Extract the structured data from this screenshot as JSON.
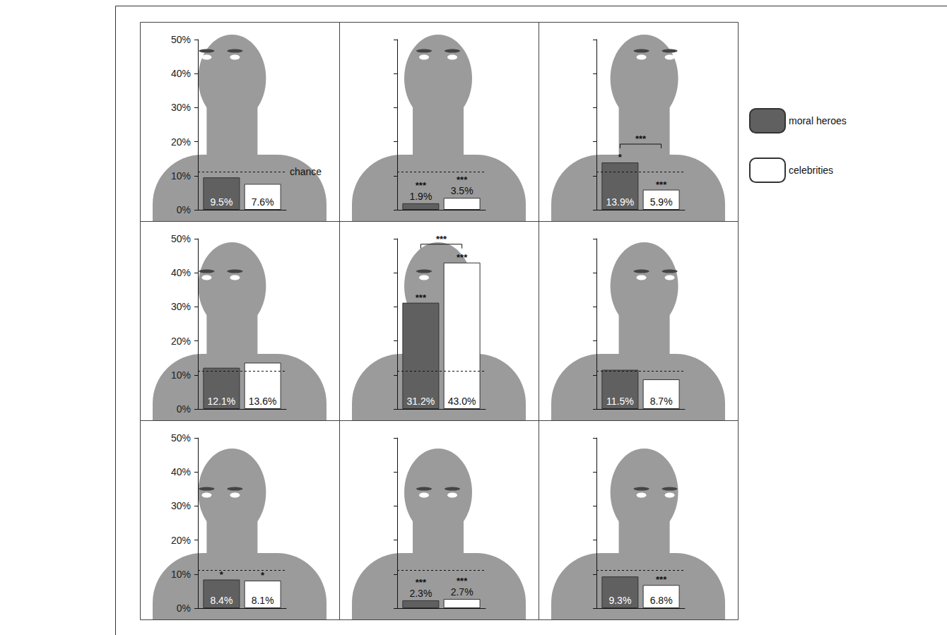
{
  "chart_data": [
    {
      "type": "bar",
      "categories": [
        null
      ],
      "series": [
        {
          "name": "moral heroes",
          "color": "#606060",
          "values": [
            9.5
          ],
          "value_labels": [
            "9.5%"
          ],
          "stars": [
            null
          ]
        },
        {
          "name": "celebrities",
          "color": "#ffffff",
          "values": [
            7.6
          ],
          "value_labels": [
            "7.6%"
          ],
          "stars": [
            null
          ]
        }
      ],
      "ylim": [
        0,
        50
      ],
      "yticks": [
        {
          "value": 0,
          "label": "0%"
        },
        {
          "value": 10,
          "label": "10%"
        },
        {
          "value": 20,
          "label": "20%"
        },
        {
          "value": 30,
          "label": "30%"
        },
        {
          "value": 40,
          "label": "40%"
        },
        {
          "value": 50,
          "label": "50%"
        }
      ],
      "tick_labels": "y",
      "data_labels": true,
      "chance": 11.1,
      "chance_label": "chance",
      "legend": "right"
    },
    {
      "type": "bar",
      "categories": [
        null
      ],
      "series": [
        {
          "name": "moral heroes",
          "color": "#606060",
          "values": [
            1.9
          ],
          "value_labels": [
            "1.9%"
          ],
          "stars": [
            "***"
          ]
        },
        {
          "name": "celebrities",
          "color": "#ffffff",
          "values": [
            3.5
          ],
          "value_labels": [
            "3.5%"
          ],
          "stars": [
            "***"
          ]
        }
      ],
      "ylim": [
        0,
        50
      ],
      "yticks": [
        0,
        10,
        20,
        30,
        40,
        50
      ],
      "tick_labels": false,
      "data_labels": true,
      "chance": 11.1
    },
    {
      "type": "bar",
      "categories": [
        null
      ],
      "series": [
        {
          "name": "moral heroes",
          "color": "#606060",
          "values": [
            13.9
          ],
          "value_labels": [
            "13.9%"
          ],
          "stars": [
            "*"
          ]
        },
        {
          "name": "celebrities",
          "color": "#ffffff",
          "values": [
            5.9
          ],
          "value_labels": [
            "5.9%"
          ],
          "stars": [
            "***"
          ]
        }
      ],
      "ylim": [
        0,
        50
      ],
      "yticks": [
        0,
        10,
        20,
        30,
        40,
        50
      ],
      "tick_labels": false,
      "data_labels": true,
      "chance": 11.1,
      "comparison": "***"
    },
    {
      "type": "bar",
      "categories": [
        null
      ],
      "series": [
        {
          "name": "moral heroes",
          "color": "#606060",
          "values": [
            12.1
          ],
          "value_labels": [
            "12.1%"
          ],
          "stars": [
            null
          ]
        },
        {
          "name": "celebrities",
          "color": "#ffffff",
          "values": [
            13.6
          ],
          "value_labels": [
            "13.6%"
          ],
          "stars": [
            null
          ]
        }
      ],
      "ylim": [
        0,
        50
      ],
      "yticks": [
        {
          "value": 0,
          "label": "0%"
        },
        {
          "value": 10,
          "label": "10%"
        },
        {
          "value": 20,
          "label": "20%"
        },
        {
          "value": 30,
          "label": "30%"
        },
        {
          "value": 40,
          "label": "40%"
        },
        {
          "value": 50,
          "label": "50%"
        }
      ],
      "tick_labels": "y",
      "data_labels": true,
      "chance": 11.1
    },
    {
      "type": "bar",
      "categories": [
        null
      ],
      "series": [
        {
          "name": "moral heroes",
          "color": "#606060",
          "values": [
            31.2
          ],
          "value_labels": [
            "31.2%"
          ],
          "stars": [
            "***"
          ]
        },
        {
          "name": "celebrities",
          "color": "#ffffff",
          "values": [
            43.0
          ],
          "value_labels": [
            "43.0%"
          ],
          "stars": [
            "***"
          ]
        }
      ],
      "ylim": [
        0,
        50
      ],
      "yticks": [
        0,
        10,
        20,
        30,
        40,
        50
      ],
      "tick_labels": false,
      "data_labels": true,
      "chance": 11.1,
      "comparison": "***"
    },
    {
      "type": "bar",
      "categories": [
        null
      ],
      "series": [
        {
          "name": "moral heroes",
          "color": "#606060",
          "values": [
            11.5
          ],
          "value_labels": [
            "11.5%"
          ],
          "stars": [
            null
          ]
        },
        {
          "name": "celebrities",
          "color": "#ffffff",
          "values": [
            8.7
          ],
          "value_labels": [
            "8.7%"
          ],
          "stars": [
            null
          ]
        }
      ],
      "ylim": [
        0,
        50
      ],
      "yticks": [
        0,
        10,
        20,
        30,
        40,
        50
      ],
      "tick_labels": false,
      "data_labels": true,
      "chance": 11.1
    },
    {
      "type": "bar",
      "categories": [
        null
      ],
      "series": [
        {
          "name": "moral heroes",
          "color": "#606060",
          "values": [
            8.4
          ],
          "value_labels": [
            "8.4%"
          ],
          "stars": [
            "*"
          ]
        },
        {
          "name": "celebrities",
          "color": "#ffffff",
          "values": [
            8.1
          ],
          "value_labels": [
            "8.1%"
          ],
          "stars": [
            "*"
          ]
        }
      ],
      "ylim": [
        0,
        50
      ],
      "yticks": [
        {
          "value": 0,
          "label": "0%"
        },
        {
          "value": 10,
          "label": "10%"
        },
        {
          "value": 20,
          "label": "20%"
        },
        {
          "value": 30,
          "label": "30%"
        },
        {
          "value": 40,
          "label": "40%"
        },
        {
          "value": 50,
          "label": "50%"
        }
      ],
      "tick_labels": "y",
      "data_labels": true,
      "chance": 11.1
    },
    {
      "type": "bar",
      "categories": [
        null
      ],
      "series": [
        {
          "name": "moral heroes",
          "color": "#606060",
          "values": [
            2.3
          ],
          "value_labels": [
            "2.3%"
          ],
          "stars": [
            "***"
          ]
        },
        {
          "name": "celebrities",
          "color": "#ffffff",
          "values": [
            2.7
          ],
          "value_labels": [
            "2.7%"
          ],
          "stars": [
            "***"
          ]
        }
      ],
      "ylim": [
        0,
        50
      ],
      "yticks": [
        0,
        10,
        20,
        30,
        40,
        50
      ],
      "tick_labels": false,
      "data_labels": true,
      "chance": 11.1
    },
    {
      "type": "bar",
      "categories": [
        null
      ],
      "series": [
        {
          "name": "moral heroes",
          "color": "#606060",
          "values": [
            9.3
          ],
          "value_labels": [
            "9.3%"
          ],
          "stars": [
            null
          ]
        },
        {
          "name": "celebrities",
          "color": "#ffffff",
          "values": [
            6.8
          ],
          "value_labels": [
            "6.8%"
          ],
          "stars": [
            "***"
          ]
        }
      ],
      "ylim": [
        0,
        50
      ],
      "yticks": [
        0,
        10,
        20,
        30,
        40,
        50
      ],
      "tick_labels": false,
      "data_labels": true,
      "chance": 11.1
    }
  ]
}
